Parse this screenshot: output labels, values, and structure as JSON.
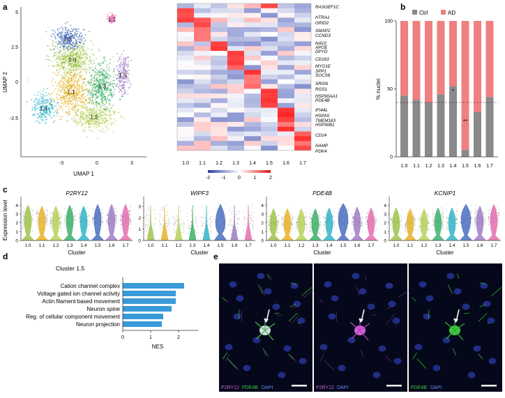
{
  "panels": {
    "a": "a",
    "b": "b",
    "c": "c",
    "d": "d",
    "e": "e"
  },
  "umap": {
    "xlabel": "UMAP 1",
    "ylabel": "UMAP 2",
    "xticks": [
      "-3",
      "0",
      "3"
    ],
    "yticks": [
      "5",
      "2.5",
      "0",
      "-2.5"
    ],
    "clusters": [
      {
        "label": "1.0",
        "color": "#9fc44a"
      },
      {
        "label": "1.1",
        "color": "#e8b32a"
      },
      {
        "label": "1.2",
        "color": "#b7d25a"
      },
      {
        "label": "1.3",
        "color": "#3cb06a"
      },
      {
        "label": "1.4",
        "color": "#33b5c8"
      },
      {
        "label": "1.5",
        "color": "#4a6fbf"
      },
      {
        "label": "1.6",
        "color": "#a07cc7"
      },
      {
        "label": "1.7",
        "color": "#e56db0"
      }
    ]
  },
  "heatmap": {
    "genes": [
      "RASGEF1C",
      "HTRA1",
      "GRID2",
      "SMAP2",
      "CCND3",
      "NAV2",
      "APOE",
      "DPYD",
      "CD163",
      "MYO1E",
      "SPP1",
      "SOCS6",
      "SRGN",
      "RGS1",
      "HSP90AA1",
      "PDE4B",
      "IFI44L",
      "HSPA5",
      "TMEM163",
      "HSP90B1",
      "CD14",
      "HAMP",
      "PDK4"
    ],
    "columns": [
      "1.0",
      "1.1",
      "1.2",
      "1.3",
      "1.4",
      "1.5",
      "1.6",
      "1.7"
    ],
    "colorbar_ticks": [
      "-2",
      "-1",
      "0",
      "1",
      "2"
    ]
  },
  "bar_chart": {
    "ylabel": "% nuclei",
    "yticks": [
      "0",
      "50",
      "100"
    ],
    "legend": [
      {
        "label": "Ctrl",
        "color": "#8a8a8a"
      },
      {
        "label": "AD",
        "color": "#f07f7f"
      }
    ],
    "significance": [
      {
        "cluster": "1.4",
        "mark": "*"
      },
      {
        "cluster": "1.5",
        "mark": "**"
      }
    ]
  },
  "violin": {
    "ylabel": "Expression level",
    "xlabel": "Cluster",
    "genes": [
      "P2RY12",
      "WIPF3",
      "PDE4B",
      "KCNIP1"
    ],
    "yticks_a": [
      "0",
      "1",
      "2",
      "3",
      "4"
    ],
    "yticks_b": [
      "0",
      "1",
      "2",
      "3"
    ]
  },
  "gsea": {
    "title": "Cluster 1.5",
    "xlabel": "NES",
    "xticks": [
      "0",
      "1",
      "2"
    ],
    "terms": [
      "Cation channel complex",
      "Voltage gated ion channel activity",
      "Actin filament based movement",
      "Neuron spine",
      "Reg. of cellular component movement",
      "Neuron projection"
    ]
  },
  "micro": {
    "labels": [
      {
        "a": "P2RY12",
        "b": "PDE4B",
        "c": "DAPI"
      },
      {
        "a": "P2RY12",
        "c": "DAPI"
      },
      {
        "b": "PDE4B",
        "c": "DAPI"
      }
    ]
  },
  "chart_data": [
    {
      "type": "scatter",
      "xlabel": "UMAP 1",
      "ylabel": "UMAP 2",
      "xlim": [
        -5.5,
        5
      ],
      "ylim": [
        -5.5,
        5.3
      ],
      "series": [
        {
          "name": "1.0",
          "center": [
            -1.2,
            1.5
          ],
          "spread": [
            1.6,
            1.1
          ]
        },
        {
          "name": "1.1",
          "center": [
            -1.3,
            -0.8
          ],
          "spread": [
            1.3,
            1.4
          ]
        },
        {
          "name": "1.2",
          "center": [
            0.6,
            -2.6
          ],
          "spread": [
            1.6,
            0.9
          ]
        },
        {
          "name": "1.3",
          "center": [
            1.3,
            -0.4
          ],
          "spread": [
            1.0,
            1.4
          ]
        },
        {
          "name": "1.4",
          "center": [
            -3.6,
            -2.0
          ],
          "spread": [
            0.9,
            0.9
          ]
        },
        {
          "name": "1.5",
          "center": [
            -1.6,
            3.0
          ],
          "spread": [
            1.1,
            0.8
          ]
        },
        {
          "name": "1.6",
          "center": [
            3.0,
            0.4
          ],
          "spread": [
            0.5,
            1.4
          ]
        },
        {
          "name": "1.7",
          "center": [
            2.1,
            4.4
          ],
          "spread": [
            0.3,
            0.3
          ]
        }
      ]
    },
    {
      "type": "heatmap",
      "columns": [
        "1.0",
        "1.1",
        "1.2",
        "1.3",
        "1.4",
        "1.5",
        "1.6",
        "1.7"
      ],
      "rows": 31,
      "range": [
        -2,
        2
      ]
    },
    {
      "type": "bar",
      "stacked": true,
      "categories": [
        "1.0",
        "1.1",
        "1.2",
        "1.3",
        "1.4",
        "1.5",
        "1.6",
        "1.7"
      ],
      "series": [
        {
          "name": "Ctrl",
          "values": [
            45,
            42,
            40,
            46,
            52,
            5,
            33,
            44
          ]
        },
        {
          "name": "AD",
          "values": [
            55,
            58,
            60,
            54,
            48,
            95,
            67,
            56
          ]
        }
      ],
      "reference_line": 40,
      "ylim": [
        0,
        100
      ]
    },
    {
      "type": "violin",
      "categories": [
        "1.0",
        "1.1",
        "1.2",
        "1.3",
        "1.4",
        "1.5",
        "1.6",
        "1.7"
      ],
      "genes": [
        {
          "name": "P2RY12",
          "ymax": 4.5,
          "centers": [
            2.4,
            2.3,
            2.3,
            2.4,
            2.3,
            2.5,
            2.5,
            2.5
          ]
        },
        {
          "name": "WIPF3",
          "ymax": 3.5,
          "centers": [
            1.5,
            1.5,
            1.5,
            1.5,
            1.5,
            1.6,
            1.5,
            1.5
          ]
        },
        {
          "name": "PDE4B",
          "ymax": 4.5,
          "centers": [
            2.0,
            2.0,
            2.0,
            2.0,
            2.1,
            2.6,
            2.2,
            2.1
          ]
        },
        {
          "name": "KCNIP1",
          "ymax": 4.5,
          "centers": [
            2.1,
            2.0,
            2.0,
            2.1,
            2.1,
            2.5,
            2.3,
            2.5
          ]
        }
      ]
    },
    {
      "type": "bar",
      "orientation": "horizontal",
      "categories": [
        "Cation channel complex",
        "Voltage gated ion channel activity",
        "Actin filament based movement",
        "Neuron spine",
        "Reg. of cellular component movement",
        "Neuron projection"
      ],
      "values": [
        2.2,
        1.9,
        1.9,
        1.75,
        1.45,
        1.4
      ],
      "xlim": [
        0,
        2.5
      ]
    }
  ]
}
